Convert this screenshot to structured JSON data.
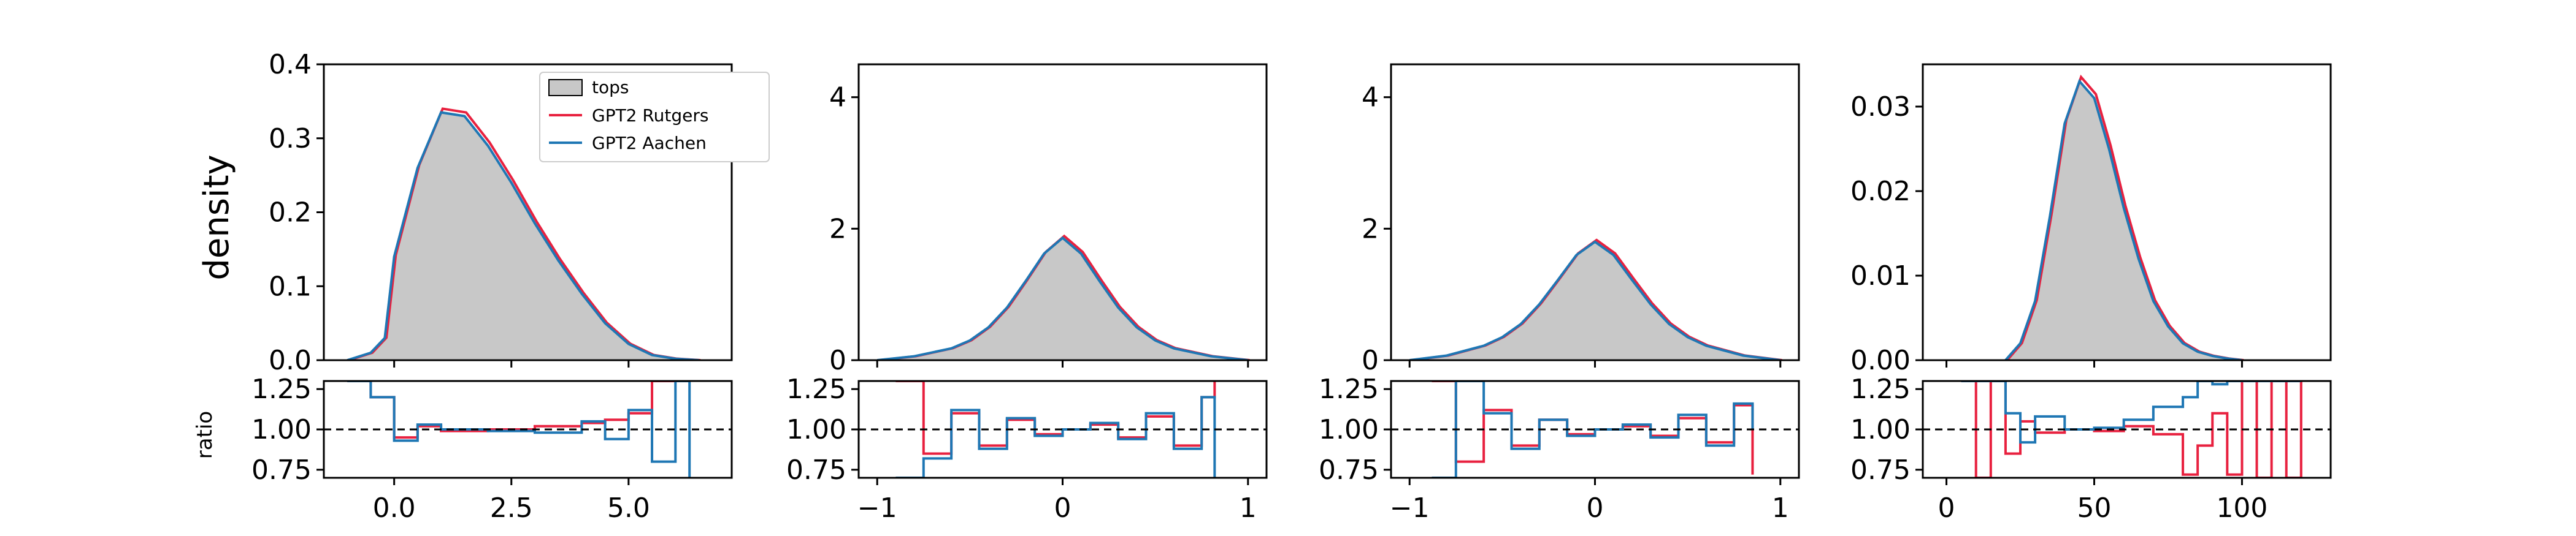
{
  "figure": {
    "density_label": "density",
    "ratio_label": "ratio"
  },
  "legend": {
    "entries": [
      {
        "label": "tops",
        "kind": "fill",
        "color": "#c8c8c8",
        "edge": "#000000"
      },
      {
        "label": "GPT2 Rutgers",
        "kind": "line",
        "color": "#e8213f"
      },
      {
        "label": "GPT2 Aachen",
        "kind": "line",
        "color": "#1f77b4"
      }
    ]
  },
  "colors": {
    "tops": "#c8c8c8",
    "rutgers": "#e8213f",
    "aachen": "#1f77b4",
    "reference_line": "#000000"
  },
  "chart_data": [
    {
      "type": "area",
      "xlim": [
        -1.5,
        7.2
      ],
      "ylim": [
        0,
        0.4
      ],
      "xticks": [
        0.0,
        2.5,
        5.0
      ],
      "xtick_labels": [
        "0.0",
        "2.5",
        "5.0"
      ],
      "yticks": [
        0,
        0.1,
        0.2,
        0.3,
        0.4
      ],
      "ytick_labels": [
        "0.0",
        "0.1",
        "0.2",
        "0.3",
        "0.4"
      ],
      "ylabel": "density",
      "series": [
        {
          "name": "tops",
          "x": [
            -1.0,
            -0.5,
            -0.2,
            0.0,
            0.5,
            1.0,
            1.5,
            2.0,
            2.5,
            3.0,
            3.5,
            4.0,
            4.5,
            5.0,
            5.5,
            6.0,
            6.5
          ],
          "values": [
            0.0,
            0.01,
            0.03,
            0.14,
            0.26,
            0.335,
            0.33,
            0.29,
            0.24,
            0.185,
            0.135,
            0.09,
            0.05,
            0.022,
            0.007,
            0.002,
            0.0
          ]
        }
      ],
      "ratio": {
        "ylim": [
          0.7,
          1.3
        ],
        "yticks": [
          0.75,
          1.0,
          1.25
        ],
        "ytick_labels": [
          "0.75",
          "1.00",
          "1.25"
        ],
        "ylabel": "ratio",
        "x": [
          -1.0,
          -0.5,
          0.0,
          0.5,
          1.0,
          2.0,
          3.0,
          4.0,
          4.5,
          5.0,
          5.5,
          6.0,
          6.3
        ],
        "rutgers": [
          1.3,
          1.2,
          0.95,
          1.02,
          0.99,
          1.0,
          1.02,
          1.04,
          1.06,
          1.1,
          1.3,
          1.3,
          1.3
        ],
        "aachen": [
          1.3,
          1.2,
          0.93,
          1.03,
          1.0,
          0.99,
          0.98,
          1.05,
          0.94,
          1.12,
          0.8,
          1.3,
          0.7
        ]
      }
    },
    {
      "type": "area",
      "xlim": [
        -1.1,
        1.1
      ],
      "ylim": [
        0,
        4.5
      ],
      "xticks": [
        -1,
        0,
        1
      ],
      "xtick_labels": [
        "−1",
        "0",
        "1"
      ],
      "yticks": [
        0,
        2,
        4
      ],
      "ytick_labels": [
        "0",
        "2",
        "4"
      ],
      "series": [
        {
          "name": "tops",
          "x": [
            -1.0,
            -0.8,
            -0.6,
            -0.5,
            -0.4,
            -0.3,
            -0.2,
            -0.1,
            0.0,
            0.1,
            0.2,
            0.3,
            0.4,
            0.5,
            0.6,
            0.8,
            1.0
          ],
          "values": [
            0.0,
            0.06,
            0.18,
            0.3,
            0.5,
            0.8,
            1.2,
            1.62,
            1.86,
            1.62,
            1.2,
            0.8,
            0.5,
            0.3,
            0.18,
            0.06,
            0.0
          ]
        }
      ],
      "ratio": {
        "ylim": [
          0.7,
          1.3
        ],
        "yticks": [
          0.75,
          1.0,
          1.25
        ],
        "ytick_labels": [
          "0.75",
          "1.00",
          "1.25"
        ],
        "x": [
          -0.9,
          -0.75,
          -0.6,
          -0.45,
          -0.3,
          -0.15,
          0.0,
          0.15,
          0.3,
          0.45,
          0.6,
          0.75,
          0.82
        ],
        "rutgers": [
          1.3,
          0.85,
          1.1,
          0.9,
          1.06,
          0.97,
          1.0,
          1.03,
          0.95,
          1.08,
          0.9,
          1.2,
          1.3
        ],
        "aachen": [
          0.7,
          0.82,
          1.12,
          0.88,
          1.07,
          0.96,
          1.0,
          1.04,
          0.94,
          1.1,
          0.88,
          1.2,
          0.7
        ]
      }
    },
    {
      "type": "area",
      "xlim": [
        -1.1,
        1.1
      ],
      "ylim": [
        0,
        4.5
      ],
      "xticks": [
        -1,
        0,
        1
      ],
      "xtick_labels": [
        "−1",
        "0",
        "1"
      ],
      "yticks": [
        0,
        2,
        4
      ],
      "ytick_labels": [
        "0",
        "2",
        "4"
      ],
      "series": [
        {
          "name": "tops",
          "x": [
            -1.0,
            -0.8,
            -0.6,
            -0.5,
            -0.4,
            -0.3,
            -0.2,
            -0.1,
            0.0,
            0.1,
            0.2,
            0.3,
            0.4,
            0.5,
            0.6,
            0.8,
            1.0
          ],
          "values": [
            0.0,
            0.07,
            0.22,
            0.35,
            0.55,
            0.85,
            1.22,
            1.6,
            1.8,
            1.6,
            1.22,
            0.85,
            0.55,
            0.35,
            0.22,
            0.07,
            0.0
          ]
        }
      ],
      "ratio": {
        "ylim": [
          0.7,
          1.3
        ],
        "yticks": [
          0.75,
          1.0,
          1.25
        ],
        "ytick_labels": [
          "0.75",
          "1.00",
          "1.25"
        ],
        "x": [
          -0.88,
          -0.75,
          -0.6,
          -0.45,
          -0.3,
          -0.15,
          0.0,
          0.15,
          0.3,
          0.45,
          0.6,
          0.75,
          0.85
        ],
        "rutgers": [
          1.3,
          0.8,
          1.12,
          0.9,
          1.06,
          0.97,
          1.0,
          1.02,
          0.96,
          1.07,
          0.92,
          1.15,
          0.72
        ],
        "aachen": [
          0.7,
          1.3,
          1.1,
          0.88,
          1.06,
          0.96,
          1.0,
          1.03,
          0.95,
          1.09,
          0.9,
          1.16,
          1.0
        ]
      }
    },
    {
      "type": "area",
      "xlim": [
        -8,
        130
      ],
      "ylim": [
        0,
        0.035
      ],
      "xticks": [
        0,
        50,
        100
      ],
      "xtick_labels": [
        "0",
        "50",
        "100"
      ],
      "yticks": [
        0,
        0.01,
        0.02,
        0.03
      ],
      "ytick_labels": [
        "0.00",
        "0.01",
        "0.02",
        "0.03"
      ],
      "series": [
        {
          "name": "tops",
          "x": [
            20,
            25,
            30,
            35,
            40,
            45,
            50,
            55,
            60,
            65,
            70,
            75,
            80,
            85,
            90,
            95,
            100
          ],
          "values": [
            0.0,
            0.002,
            0.007,
            0.017,
            0.028,
            0.033,
            0.031,
            0.025,
            0.018,
            0.012,
            0.007,
            0.004,
            0.002,
            0.001,
            0.0005,
            0.0002,
            0.0
          ]
        }
      ],
      "ratio": {
        "ylim": [
          0.7,
          1.3
        ],
        "yticks": [
          0.75,
          1.0,
          1.25
        ],
        "ytick_labels": [
          "0.75",
          "1.00",
          "1.25"
        ],
        "x": [
          5,
          10,
          15,
          20,
          25,
          30,
          40,
          50,
          60,
          70,
          80,
          85,
          90,
          95,
          100,
          105,
          110,
          115,
          120
        ],
        "rutgers": [
          1.3,
          0.7,
          1.3,
          0.85,
          1.05,
          0.98,
          1.0,
          0.99,
          1.02,
          0.97,
          0.72,
          0.9,
          1.1,
          0.72,
          1.3,
          0.7,
          1.3,
          0.7,
          1.3
        ],
        "aachen": [
          1.3,
          1.3,
          1.3,
          1.1,
          0.92,
          1.08,
          1.0,
          1.01,
          1.06,
          1.14,
          1.2,
          1.3,
          1.28,
          1.3,
          1.3,
          1.3,
          1.3,
          1.3,
          1.3
        ]
      }
    }
  ]
}
